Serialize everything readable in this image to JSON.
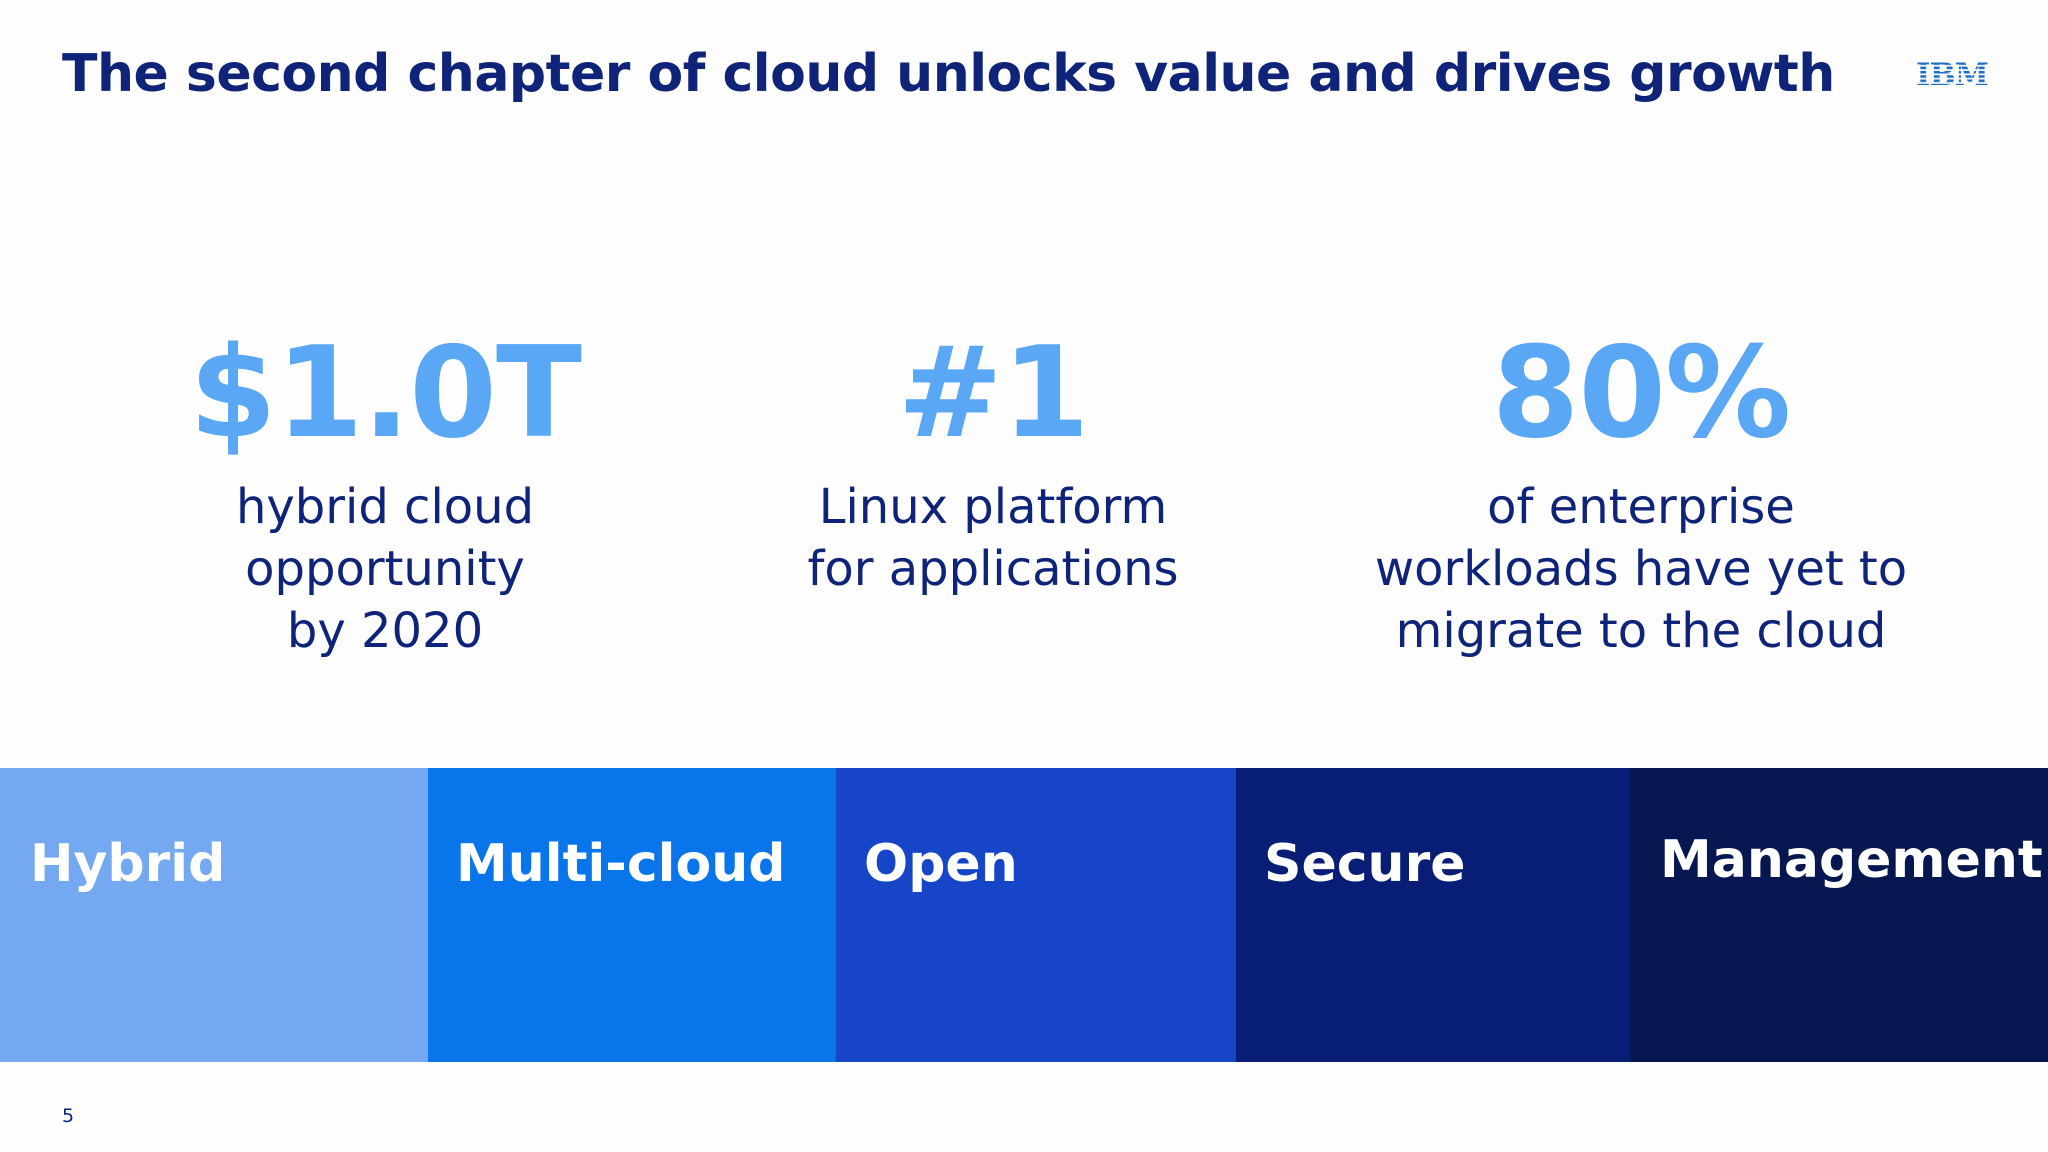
{
  "slide": {
    "title": "The second chapter of cloud unlocks value and drives growth",
    "logo_text": "IBM",
    "page_number": "5"
  },
  "stats": [
    {
      "value": "$1.0T",
      "description_lines": [
        "hybrid cloud",
        "opportunity",
        "by 2020"
      ]
    },
    {
      "value": "#1",
      "description_lines": [
        "Linux platform",
        "for applications"
      ]
    },
    {
      "value": "80%",
      "description_lines": [
        "of enterprise",
        "workloads have yet to",
        "migrate to the cloud"
      ]
    }
  ],
  "pillars": [
    {
      "label": "Hybrid",
      "color": "#74a8f0"
    },
    {
      "label": "Multi-cloud",
      "color": "#0875eb"
    },
    {
      "label": "Open",
      "color": "#1645c8"
    },
    {
      "label": "Secure",
      "color": "#081d75"
    },
    {
      "label": "Management",
      "color": "#061650"
    }
  ],
  "colors": {
    "title": "#0f2379",
    "stat_value": "#5aa7f5",
    "logo": "#1f70c1"
  }
}
